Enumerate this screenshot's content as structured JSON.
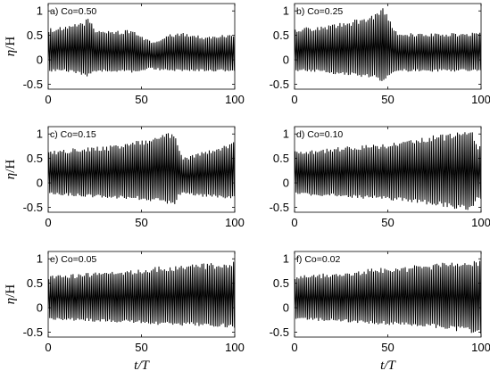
{
  "chart_data": [
    {
      "type": "line",
      "panel": "a",
      "annotation": "a) Co=0.50",
      "xlabel": "",
      "ylabel": "η/H",
      "xlim": [
        0,
        100
      ],
      "ylim": [
        -0.6,
        1.15
      ],
      "xticks": [
        "0",
        "50",
        "100"
      ],
      "yticks": [
        "-0.5",
        "0",
        "0.5",
        "1"
      ],
      "series_color": "#000000",
      "waves_per_unit": 1.0,
      "envelope": {
        "t": [
          0,
          10,
          15,
          20,
          22,
          25,
          30,
          35,
          40,
          45,
          50,
          55,
          60,
          65,
          70,
          75,
          80,
          85,
          90,
          95,
          100
        ],
        "crest": [
          0.65,
          0.68,
          0.75,
          0.82,
          0.9,
          0.6,
          0.62,
          0.6,
          0.6,
          0.62,
          0.5,
          0.38,
          0.42,
          0.52,
          0.55,
          0.55,
          0.5,
          0.48,
          0.5,
          0.52,
          0.55
        ],
        "trough": [
          -0.22,
          -0.22,
          -0.25,
          -0.3,
          -0.32,
          -0.25,
          -0.22,
          -0.22,
          -0.22,
          -0.24,
          -0.2,
          -0.18,
          -0.2,
          -0.22,
          -0.22,
          -0.22,
          -0.22,
          -0.22,
          -0.22,
          -0.22,
          -0.22
        ]
      }
    },
    {
      "type": "line",
      "panel": "b",
      "annotation": "b) Co=0.25",
      "xlabel": "",
      "ylabel": "",
      "xlim": [
        0,
        100
      ],
      "ylim": [
        -0.6,
        1.15
      ],
      "xticks": [
        "0",
        "50",
        "100"
      ],
      "yticks": [
        "-0.5",
        "0",
        "0.5",
        "1"
      ],
      "series_color": "#000000",
      "waves_per_unit": 1.0,
      "envelope": {
        "t": [
          0,
          10,
          20,
          30,
          40,
          45,
          48,
          50,
          52,
          55,
          60,
          70,
          80,
          90,
          100
        ],
        "crest": [
          0.65,
          0.68,
          0.72,
          0.8,
          0.9,
          0.98,
          1.1,
          0.9,
          0.75,
          0.55,
          0.55,
          0.55,
          0.55,
          0.55,
          0.58
        ],
        "trough": [
          -0.22,
          -0.22,
          -0.26,
          -0.3,
          -0.34,
          -0.38,
          -0.42,
          -0.32,
          -0.25,
          -0.22,
          -0.22,
          -0.22,
          -0.22,
          -0.22,
          -0.22
        ]
      }
    },
    {
      "type": "line",
      "panel": "c",
      "annotation": "c) Co=0.15",
      "xlabel": "",
      "ylabel": "η/H",
      "xlim": [
        0,
        100
      ],
      "ylim": [
        -0.6,
        1.15
      ],
      "xticks": [
        "0",
        "50",
        "100"
      ],
      "yticks": [
        "-0.5",
        "0",
        "0.5",
        "1"
      ],
      "series_color": "#000000",
      "waves_per_unit": 1.0,
      "envelope": {
        "t": [
          0,
          10,
          20,
          30,
          40,
          50,
          60,
          65,
          68,
          70,
          72,
          75,
          80,
          90,
          95,
          100
        ],
        "crest": [
          0.65,
          0.7,
          0.72,
          0.75,
          0.8,
          0.88,
          0.98,
          1.05,
          1.08,
          0.7,
          0.55,
          0.55,
          0.62,
          0.72,
          0.8,
          0.88
        ],
        "trough": [
          -0.22,
          -0.24,
          -0.26,
          -0.28,
          -0.3,
          -0.32,
          -0.36,
          -0.4,
          -0.42,
          -0.25,
          -0.22,
          -0.22,
          -0.25,
          -0.28,
          -0.3,
          -0.3
        ]
      }
    },
    {
      "type": "line",
      "panel": "d",
      "annotation": "d) Co=0.10",
      "xlabel": "",
      "ylabel": "",
      "xlim": [
        0,
        100
      ],
      "ylim": [
        -0.6,
        1.15
      ],
      "xticks": [
        "0",
        "50",
        "100"
      ],
      "yticks": [
        "-0.5",
        "0",
        "0.5",
        "1"
      ],
      "series_color": "#000000",
      "waves_per_unit": 1.0,
      "envelope": {
        "t": [
          0,
          10,
          20,
          30,
          40,
          50,
          60,
          70,
          80,
          85,
          90,
          95,
          97,
          100
        ],
        "crest": [
          0.65,
          0.68,
          0.72,
          0.75,
          0.78,
          0.82,
          0.88,
          0.95,
          1.0,
          1.05,
          1.08,
          1.1,
          0.8,
          0.75
        ],
        "trough": [
          -0.22,
          -0.24,
          -0.25,
          -0.28,
          -0.3,
          -0.32,
          -0.35,
          -0.4,
          -0.45,
          -0.48,
          -0.5,
          -0.52,
          -0.35,
          -0.3
        ]
      }
    },
    {
      "type": "line",
      "panel": "e",
      "annotation": "e) Co=0.05",
      "xlabel": "t/T",
      "ylabel": "η/H",
      "xlim": [
        0,
        100
      ],
      "ylim": [
        -0.6,
        1.15
      ],
      "xticks": [
        "0",
        "50",
        "100"
      ],
      "yticks": [
        "-0.5",
        "0",
        "0.5",
        "1"
      ],
      "series_color": "#000000",
      "waves_per_unit": 1.0,
      "envelope": {
        "t": [
          0,
          10,
          20,
          30,
          40,
          50,
          60,
          70,
          80,
          90,
          100
        ],
        "crest": [
          0.65,
          0.68,
          0.72,
          0.75,
          0.78,
          0.8,
          0.85,
          0.88,
          0.9,
          0.92,
          0.95
        ],
        "trough": [
          -0.22,
          -0.24,
          -0.25,
          -0.27,
          -0.28,
          -0.3,
          -0.32,
          -0.33,
          -0.35,
          -0.36,
          -0.38
        ]
      }
    },
    {
      "type": "line",
      "panel": "f",
      "annotation": "f) Co=0.02",
      "xlabel": "t/T",
      "ylabel": "",
      "xlim": [
        0,
        100
      ],
      "ylim": [
        -0.6,
        1.15
      ],
      "xticks": [
        "0",
        "50",
        "100"
      ],
      "yticks": [
        "-0.5",
        "0",
        "0.5",
        "1"
      ],
      "series_color": "#000000",
      "waves_per_unit": 1.0,
      "envelope": {
        "t": [
          0,
          10,
          20,
          30,
          40,
          50,
          60,
          70,
          80,
          90,
          100
        ],
        "crest": [
          0.65,
          0.68,
          0.72,
          0.75,
          0.8,
          0.82,
          0.85,
          0.9,
          0.92,
          0.95,
          0.98
        ],
        "trough": [
          -0.22,
          -0.24,
          -0.26,
          -0.28,
          -0.3,
          -0.32,
          -0.34,
          -0.36,
          -0.4,
          -0.45,
          -0.5
        ]
      }
    }
  ]
}
